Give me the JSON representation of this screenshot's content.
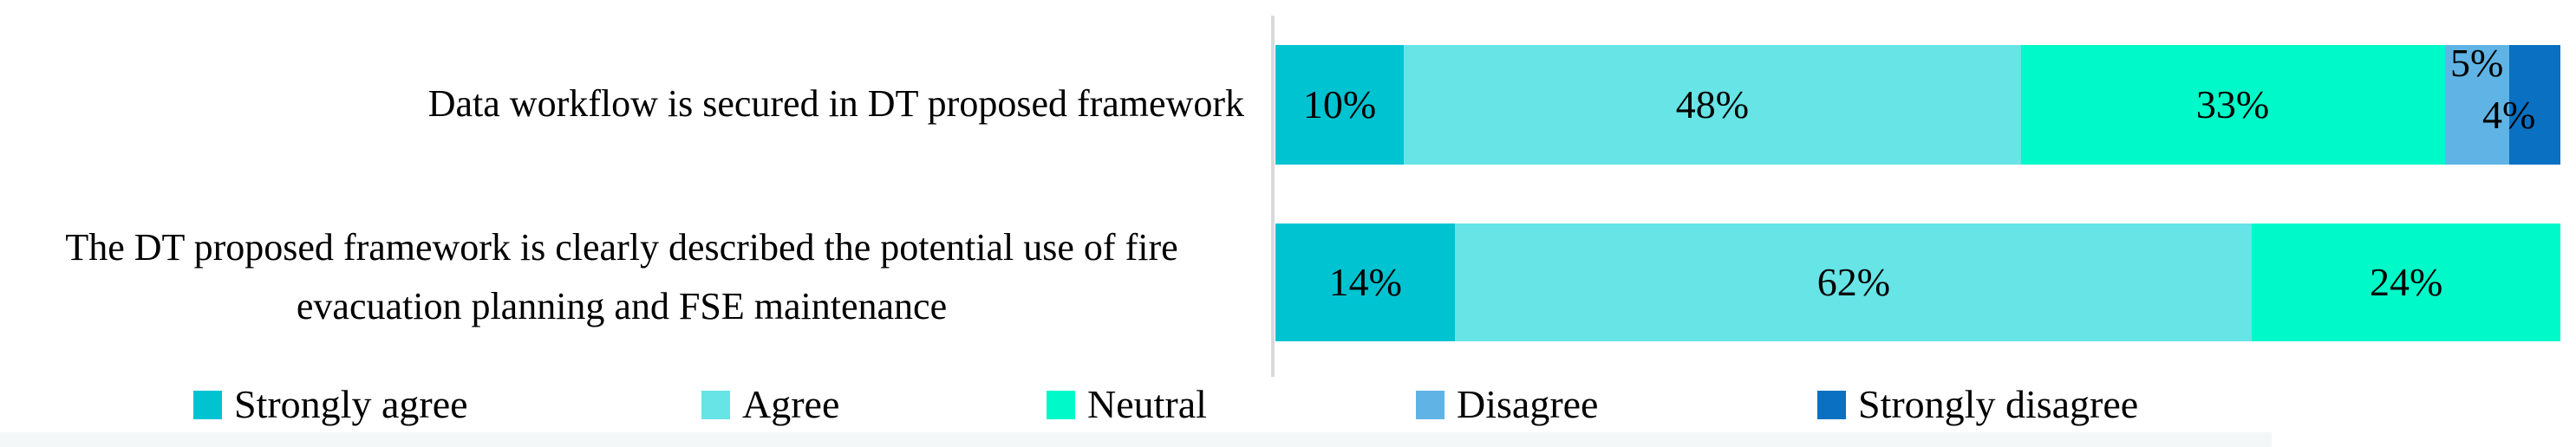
{
  "figure": {
    "background_color": "#FFFFFF",
    "axis_line_color": "#D9D9D9",
    "text_color": "#000000",
    "bottom_strip_color": "#F3F7F7"
  },
  "chart_data": {
    "type": "bar",
    "subtype": "horizontal-stacked-100-percent",
    "title": "",
    "xlabel": "",
    "ylabel": "",
    "xlim": [
      0,
      100
    ],
    "grid": false,
    "legend_position": "bottom",
    "value_format": "percent",
    "categories": [
      "Data workflow is secured in DT proposed framework",
      "The DT proposed  framework is clearly described the potential use of fire evacuation planning and FSE maintenance"
    ],
    "series": [
      {
        "name": "Strongly agree",
        "color": "#00C3D2",
        "values": [
          10,
          14
        ]
      },
      {
        "name": "Agree",
        "color": "#66E4E6",
        "values": [
          48,
          62
        ]
      },
      {
        "name": "Neutral",
        "color": "#00F9C8",
        "values": [
          33,
          24
        ]
      },
      {
        "name": "Disagree",
        "color": "#5FB4E5",
        "values": [
          5,
          0
        ]
      },
      {
        "name": "Strongly disagree",
        "color": "#0A70C2",
        "values": [
          4,
          0
        ]
      }
    ],
    "data_labels": [
      [
        "10%",
        "48%",
        "33%",
        "5%",
        "4%"
      ],
      [
        "14%",
        "62%",
        "24%"
      ]
    ],
    "label_layout": [
      [
        "center",
        "center",
        "center",
        "top",
        "shift-left"
      ],
      [
        "center",
        "center",
        "center"
      ]
    ]
  }
}
